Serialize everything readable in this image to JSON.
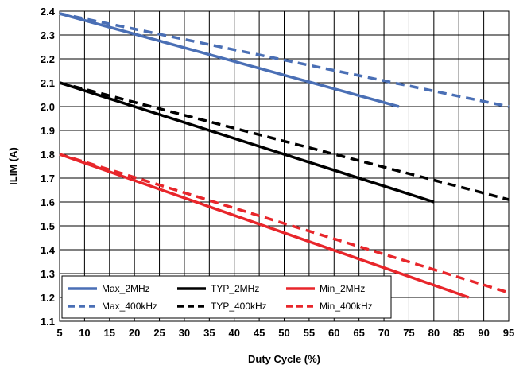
{
  "chart_data": {
    "type": "line",
    "xlabel": "Duty Cycle (%)",
    "ylabel": "ILIM (A)",
    "xlim": [
      5,
      95
    ],
    "ylim": [
      1.1,
      2.4
    ],
    "xticks": [
      "5",
      "10",
      "15",
      "20",
      "25",
      "30",
      "35",
      "40",
      "45",
      "50",
      "55",
      "60",
      "65",
      "70",
      "75",
      "80",
      "85",
      "90",
      "95"
    ],
    "yticks": [
      "1.1",
      "1.2",
      "1.3",
      "1.4",
      "1.5",
      "1.6",
      "1.7",
      "1.8",
      "1.9",
      "2.0",
      "2.1",
      "2.2",
      "2.3",
      "2.4"
    ],
    "grid": true,
    "legend_position": "bottom-left",
    "series": [
      {
        "name": "Max_2MHz",
        "color": "#4a6fb5",
        "style": "solid",
        "x": [
          5,
          73
        ],
        "y": [
          2.39,
          2.0
        ]
      },
      {
        "name": "TYP_2MHz",
        "color": "#000000",
        "style": "solid",
        "x": [
          5,
          80
        ],
        "y": [
          2.1,
          1.6
        ]
      },
      {
        "name": "Min_2MHz",
        "color": "#e8262b",
        "style": "solid",
        "x": [
          5,
          87
        ],
        "y": [
          1.8,
          1.2
        ]
      },
      {
        "name": "Max_400kHz",
        "color": "#4a6fb5",
        "style": "dashed",
        "x": [
          5,
          95
        ],
        "y": [
          2.39,
          2.0
        ]
      },
      {
        "name": "TYP_400kHz",
        "color": "#000000",
        "style": "dashed",
        "x": [
          5,
          95
        ],
        "y": [
          2.1,
          1.61
        ]
      },
      {
        "name": "Min_400kHz",
        "color": "#e8262b",
        "style": "dashed",
        "x": [
          5,
          95
        ],
        "y": [
          1.8,
          1.22
        ]
      }
    ]
  }
}
